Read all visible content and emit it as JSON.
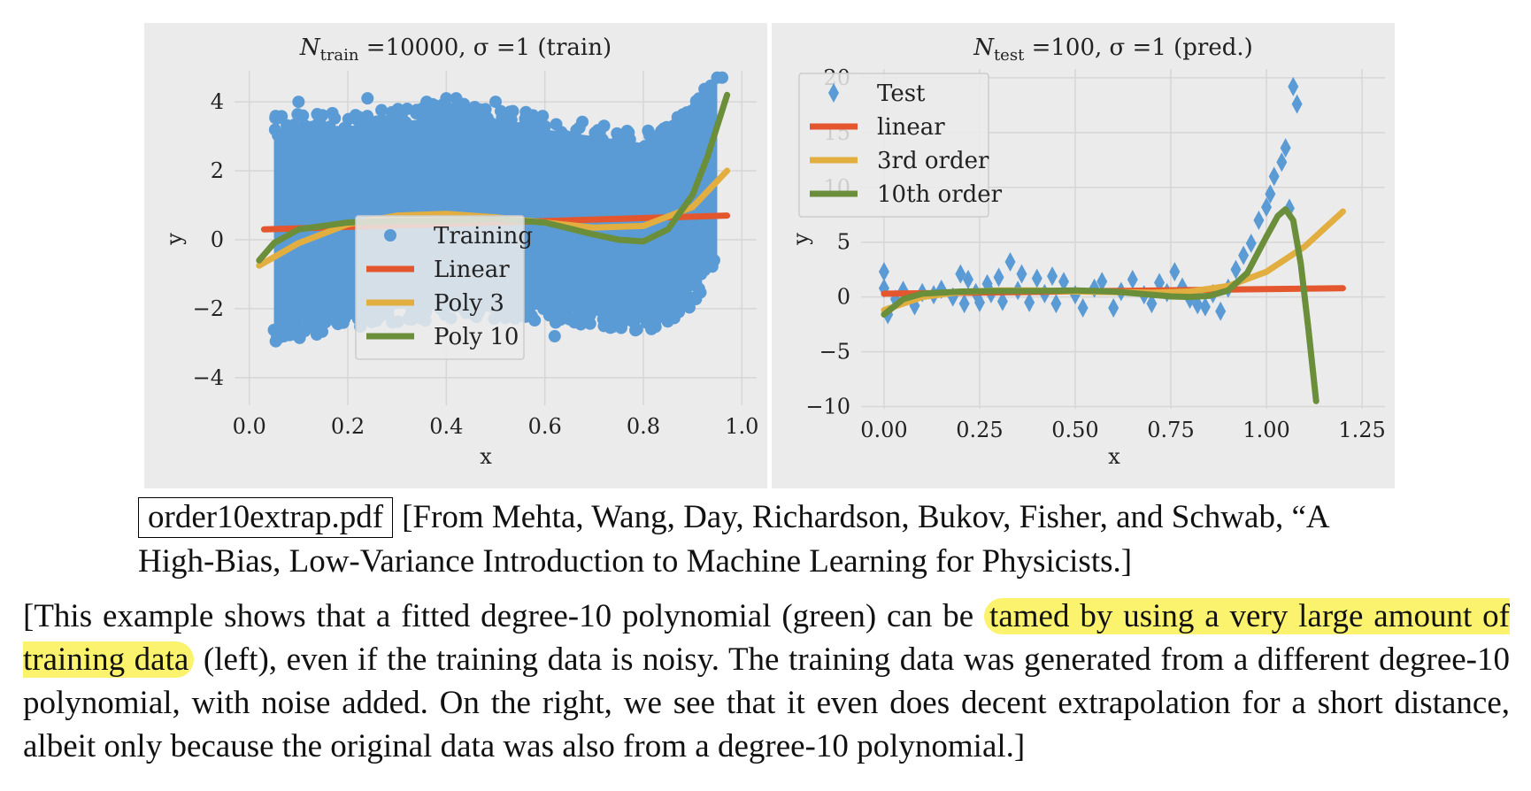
{
  "chart_data": [
    {
      "type": "scatter",
      "title_main": "N",
      "title_sub": "train",
      "title_rest": " =10000, σ =1 (train)",
      "xlabel": "x",
      "ylabel": "y",
      "xlim": [
        -0.03,
        1.03
      ],
      "ylim": [
        -4.8,
        4.9
      ],
      "xticks": [
        0.0,
        0.2,
        0.4,
        0.6,
        0.8,
        1.0
      ],
      "xtick_labels": [
        "0.0",
        "0.2",
        "0.4",
        "0.6",
        "0.8",
        "1.0"
      ],
      "yticks": [
        -4,
        -2,
        0,
        2,
        4
      ],
      "ytick_labels": [
        "−4",
        "−2",
        "0",
        "2",
        "4"
      ],
      "grid": true,
      "legend_position": "lower-center",
      "legend": [
        {
          "label": "Training",
          "marker": "circle",
          "color": "#5B9BD5"
        },
        {
          "label": "Linear",
          "marker": "line",
          "color": "#E4572E"
        },
        {
          "label": "Poly 3",
          "marker": "line",
          "color": "#E1AE3F"
        },
        {
          "label": "Poly 10",
          "marker": "line",
          "color": "#6B8E3A"
        }
      ],
      "scatter_band": {
        "x": [
          0.05,
          0.1,
          0.2,
          0.3,
          0.4,
          0.5,
          0.6,
          0.7,
          0.8,
          0.85,
          0.9,
          0.95
        ],
        "y_low": [
          -2.6,
          -2.5,
          -2.2,
          -2.0,
          -2.0,
          -1.9,
          -2.0,
          -2.1,
          -2.3,
          -2.1,
          -1.5,
          -0.5
        ],
        "y_high": [
          3.2,
          3.3,
          3.3,
          3.4,
          3.6,
          3.5,
          3.2,
          3.0,
          2.8,
          2.9,
          3.6,
          4.7
        ]
      },
      "outliers": {
        "x": [
          0.07,
          0.1,
          0.24,
          0.36,
          0.4,
          0.42,
          0.5,
          0.62,
          0.72,
          0.95,
          0.96
        ],
        "y": [
          -2.8,
          4.0,
          4.1,
          4.0,
          4.1,
          4.1,
          4.0,
          -2.8,
          -2.5,
          4.7,
          4.7
        ]
      },
      "series": [
        {
          "name": "Linear",
          "color": "#E4572E",
          "x": [
            0.03,
            0.97
          ],
          "y": [
            0.3,
            0.7
          ]
        },
        {
          "name": "Poly 3",
          "color": "#E1AE3F",
          "x": [
            0.02,
            0.1,
            0.2,
            0.3,
            0.4,
            0.5,
            0.6,
            0.7,
            0.8,
            0.9,
            0.97
          ],
          "y": [
            -0.75,
            -0.1,
            0.45,
            0.7,
            0.75,
            0.65,
            0.5,
            0.35,
            0.4,
            0.95,
            2.0
          ]
        },
        {
          "name": "Poly 10",
          "color": "#6B8E3A",
          "x": [
            0.02,
            0.05,
            0.1,
            0.2,
            0.3,
            0.4,
            0.5,
            0.6,
            0.7,
            0.75,
            0.8,
            0.85,
            0.9,
            0.93,
            0.97
          ],
          "y": [
            -0.6,
            -0.1,
            0.3,
            0.5,
            0.55,
            0.55,
            0.6,
            0.5,
            0.15,
            0.0,
            -0.05,
            0.3,
            1.3,
            2.4,
            4.2
          ]
        }
      ]
    },
    {
      "type": "scatter",
      "title_main": "N",
      "title_sub": "test",
      "title_rest": " =100, σ =1 (pred.)",
      "xlabel": "x",
      "ylabel": "y",
      "xlim": [
        -0.06,
        1.31
      ],
      "ylim": [
        -10.2,
        20.8
      ],
      "xticks": [
        0.0,
        0.25,
        0.5,
        0.75,
        1.0,
        1.25
      ],
      "xtick_labels": [
        "0.00",
        "0.25",
        "0.50",
        "0.75",
        "1.00",
        "1.25"
      ],
      "yticks": [
        -10,
        -5,
        0,
        5,
        10,
        15,
        20
      ],
      "ytick_labels": [
        "−10",
        "−5",
        "0",
        "5",
        "10",
        "15",
        "20"
      ],
      "grid": true,
      "legend_position": "upper-left",
      "legend": [
        {
          "label": "Test",
          "marker": "diamond",
          "color": "#5B9BD5"
        },
        {
          "label": "linear",
          "marker": "line",
          "color": "#E4572E"
        },
        {
          "label": "3rd order",
          "marker": "line",
          "color": "#E1AE3F"
        },
        {
          "label": "10th order",
          "marker": "line",
          "color": "#6B8E3A"
        }
      ],
      "test_points": {
        "x": [
          0.0,
          0.0,
          0.01,
          0.03,
          0.05,
          0.08,
          0.1,
          0.13,
          0.15,
          0.18,
          0.2,
          0.21,
          0.22,
          0.24,
          0.25,
          0.27,
          0.28,
          0.3,
          0.31,
          0.33,
          0.35,
          0.36,
          0.38,
          0.4,
          0.42,
          0.44,
          0.45,
          0.47,
          0.5,
          0.52,
          0.55,
          0.57,
          0.6,
          0.62,
          0.65,
          0.68,
          0.7,
          0.72,
          0.74,
          0.76,
          0.78,
          0.8,
          0.82,
          0.84,
          0.86,
          0.88,
          0.9,
          0.92,
          0.94,
          0.96,
          0.98,
          1.0,
          1.01,
          1.02,
          1.04,
          1.05,
          1.06,
          1.07,
          1.08
        ],
        "y": [
          2.3,
          0.8,
          -1.6,
          -0.2,
          0.6,
          -0.8,
          0.4,
          0.2,
          0.7,
          0.0,
          2.1,
          -0.6,
          1.6,
          0.4,
          -0.5,
          1.2,
          0.3,
          1.8,
          -0.4,
          3.2,
          0.6,
          2.1,
          -0.5,
          1.7,
          0.3,
          1.9,
          -0.6,
          1.4,
          0.2,
          -1.0,
          0.8,
          1.4,
          -1.0,
          0.5,
          1.6,
          0.2,
          -0.6,
          1.3,
          0.4,
          2.3,
          0.9,
          -0.2,
          -0.7,
          -0.9,
          0.3,
          -1.3,
          0.8,
          2.5,
          3.8,
          4.9,
          7.0,
          8.2,
          9.4,
          11.0,
          12.3,
          13.6,
          8.1,
          19.2,
          17.6
        ]
      },
      "series": [
        {
          "name": "linear",
          "color": "#E4572E",
          "x": [
            0.0,
            1.2
          ],
          "y": [
            0.3,
            0.8
          ]
        },
        {
          "name": "3rd order",
          "color": "#E1AE3F",
          "x": [
            0.0,
            0.1,
            0.2,
            0.3,
            0.4,
            0.5,
            0.6,
            0.7,
            0.8,
            0.9,
            1.0,
            1.1,
            1.2
          ],
          "y": [
            -1.2,
            0.0,
            0.45,
            0.6,
            0.6,
            0.5,
            0.45,
            0.4,
            0.5,
            1.0,
            2.3,
            4.6,
            7.8
          ]
        },
        {
          "name": "10th order",
          "color": "#6B8E3A",
          "x": [
            0.0,
            0.05,
            0.1,
            0.2,
            0.3,
            0.4,
            0.5,
            0.6,
            0.7,
            0.75,
            0.8,
            0.85,
            0.9,
            0.95,
            1.0,
            1.03,
            1.05,
            1.07,
            1.09,
            1.11,
            1.13
          ],
          "y": [
            -1.6,
            -0.2,
            0.3,
            0.5,
            0.55,
            0.55,
            0.6,
            0.5,
            0.2,
            0.05,
            0.0,
            0.1,
            0.6,
            2.2,
            5.5,
            7.4,
            8.0,
            7.0,
            3.0,
            -3.0,
            -9.5
          ]
        }
      ]
    }
  ],
  "caption": {
    "filename": "order10extrap.pdf",
    "citation": "[From Mehta, Wang, Day, Richardson, Bukov, Fisher, and Schwab, “A High-Bias, Low-Variance Introduction to Machine Learning for Physicists.]"
  },
  "body": {
    "part1": "[This example shows that a fitted degree-10 polynomial (green) can be ",
    "highlight": "tamed by using a very large amount of training data",
    "part2": " (left), even if the training data is noisy.  The training data was generated from a different degree-10 polynomial, with noise added.  On the right, we see that it even does decent extrapolation for a short distance, albeit only because the original data was also from a degree-10 polynomial.]"
  }
}
